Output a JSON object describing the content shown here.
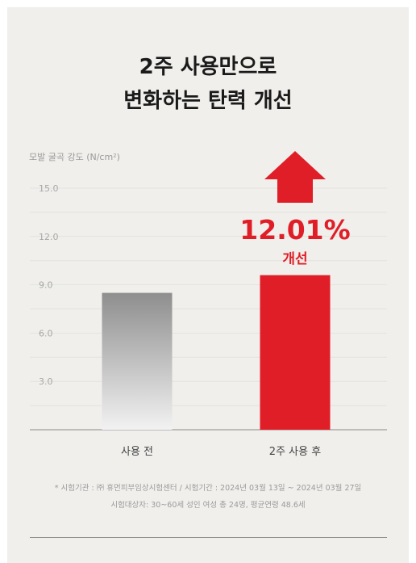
{
  "title_line1": "2주 사용만으로",
  "title_line2": "변화하는 탄력 개선",
  "chart_data": {
    "type": "bar",
    "ylabel": "모발 굴곡 강도 (N/cm²)",
    "categories": [
      "사용 전",
      "2주 사용 후"
    ],
    "values": [
      8.5,
      9.6
    ],
    "ylim": [
      0,
      15
    ],
    "yticks": [
      3.0,
      6.0,
      9.0,
      12.0,
      15.0
    ],
    "ytick_labels": [
      "3.0",
      "6.0",
      "9.0",
      "12.0",
      "15.0"
    ],
    "grid": true,
    "annotation": {
      "value": "12.01%",
      "label": "개선"
    },
    "colors": {
      "before_top": "#8e8e8e",
      "before_bottom": "#f2f2f2",
      "after": "#e01e27"
    }
  },
  "footnote_line1": "* 시험기관 : ㈜ 휴먼피부임상시험센터 / 시험기간 : 2024년 03월 13일 ~ 2024년 03월 27일",
  "footnote_line2": "시험대상자: 30~60세 성인 여성 총 24명, 평균연령 48.6세"
}
